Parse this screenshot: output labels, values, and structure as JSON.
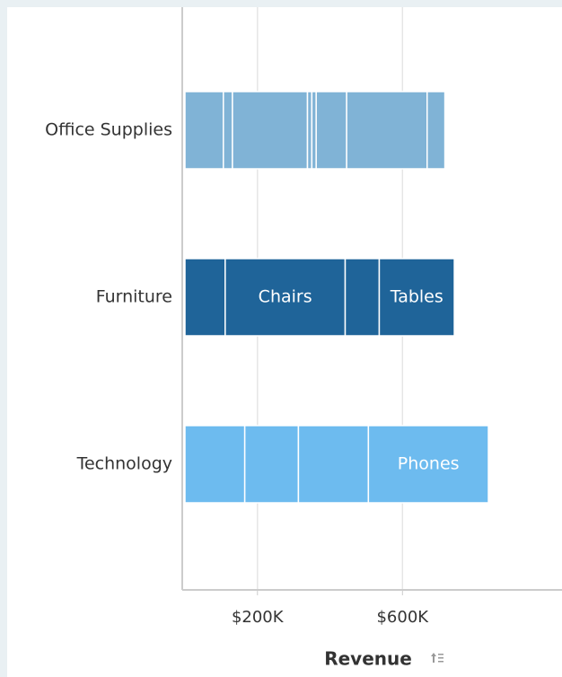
{
  "chart_data": {
    "type": "stacked-bar-horizontal",
    "categories": [
      "Office Supplies",
      "Furniture",
      "Technology"
    ],
    "colors": [
      "#80b3d6",
      "#1f6499",
      "#6dbbef"
    ],
    "segments": [
      [
        106000,
        25000,
        207000,
        12000,
        12000,
        84000,
        222000,
        49000
      ],
      [
        111000,
        331000,
        94000,
        207000
      ],
      [
        165000,
        148000,
        193000,
        331000
      ]
    ],
    "segment_labels": [
      [
        null,
        null,
        null,
        null,
        null,
        null,
        null,
        null
      ],
      [
        null,
        "Chairs",
        null,
        "Tables"
      ],
      [
        null,
        null,
        null,
        "Phones"
      ]
    ],
    "xlim": [
      0,
      1040000
    ],
    "xticks": [
      {
        "value": 200000,
        "label": "$200K"
      },
      {
        "value": 600000,
        "label": "$600K"
      }
    ],
    "xlabel": "Revenue",
    "grid": true
  }
}
